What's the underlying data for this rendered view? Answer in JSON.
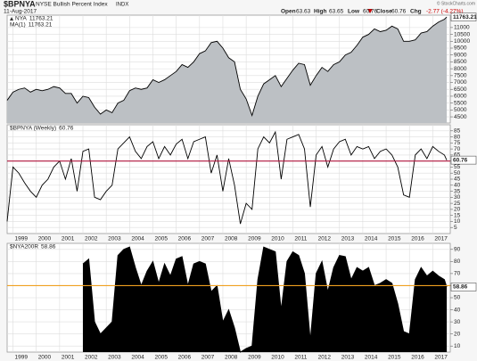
{
  "header": {
    "symbol": "$BPNYA",
    "name": "NYSE Bullish Percent Index",
    "exchange": "INDX",
    "date": "11-Aug-2017",
    "quote": [
      {
        "label": "Open",
        "value": "63.63"
      },
      {
        "label": "High",
        "value": "63.65"
      },
      {
        "label": "Low",
        "value": "60.76"
      },
      {
        "label": "Close",
        "value": "60.76"
      },
      {
        "label": "Chg",
        "value": "-2.77 (-4.27%)"
      }
    ],
    "credit": "© StockCharts.com"
  },
  "chart_data": [
    {
      "type": "area",
      "legend": [
        "NYA",
        "MA(1)"
      ],
      "grid": true,
      "xlim": [
        1998.75,
        2017.75
      ],
      "xticks": [
        1999,
        2000,
        2001,
        2002,
        2003,
        2004,
        2005,
        2006,
        2007,
        2008,
        2009,
        2010,
        2011,
        2012,
        2013,
        2014,
        2015,
        2016,
        2017
      ],
      "xaxis_labels": false,
      "ylim": [
        4050,
        11900
      ],
      "yticks": [
        4500,
        5000,
        5500,
        6000,
        6500,
        7000,
        7500,
        8000,
        8500,
        9000,
        9500,
        10000,
        10500,
        11000
      ],
      "series": [
        {
          "name": "NYA",
          "color": "#000000",
          "fill": "#bcc0c4",
          "x": [
            1998.75,
            1999,
            1999.25,
            1999.5,
            1999.75,
            2000,
            2000.25,
            2000.5,
            2000.75,
            2001,
            2001.25,
            2001.5,
            2001.75,
            2002,
            2002.25,
            2002.5,
            2002.75,
            2003,
            2003.25,
            2003.5,
            2003.75,
            2004,
            2004.25,
            2004.5,
            2004.75,
            2005,
            2005.25,
            2005.5,
            2005.75,
            2006,
            2006.25,
            2006.5,
            2006.75,
            2007,
            2007.25,
            2007.5,
            2007.75,
            2008,
            2008.25,
            2008.5,
            2008.75,
            2009,
            2009.25,
            2009.5,
            2009.75,
            2010,
            2010.25,
            2010.5,
            2010.75,
            2011,
            2011.25,
            2011.5,
            2011.75,
            2012,
            2012.25,
            2012.5,
            2012.75,
            2013,
            2013.25,
            2013.5,
            2013.75,
            2014,
            2014.25,
            2014.5,
            2014.75,
            2015,
            2015.25,
            2015.5,
            2015.75,
            2016,
            2016.25,
            2016.5,
            2016.75,
            2017,
            2017.25,
            2017.5,
            2017.6
          ],
          "values": [
            5700,
            6300,
            6500,
            6600,
            6300,
            6500,
            6400,
            6500,
            6700,
            6600,
            6200,
            6200,
            5500,
            6000,
            5900,
            5200,
            4700,
            5000,
            4800,
            5500,
            5700,
            6400,
            6600,
            6500,
            6600,
            7200,
            7000,
            7200,
            7500,
            7800,
            8300,
            8100,
            8500,
            9100,
            9300,
            9900,
            10000,
            9500,
            8800,
            8500,
            6500,
            5800,
            4600,
            6000,
            6900,
            7200,
            7500,
            6700,
            7300,
            7900,
            8400,
            8300,
            6800,
            7500,
            8100,
            7800,
            8300,
            8500,
            9000,
            9200,
            9700,
            10300,
            10500,
            10900,
            10700,
            10800,
            11100,
            10900,
            10000,
            10000,
            10100,
            10600,
            10700,
            11100,
            11400,
            11600,
            11763.21
          ]
        }
      ]
    },
    {
      "type": "line",
      "grid": true,
      "reference_line": {
        "value": 60,
        "color": "#b0143c"
      },
      "xlim": [
        1998.75,
        2017.75
      ],
      "xticks": [
        1999,
        2000,
        2001,
        2002,
        2003,
        2004,
        2005,
        2006,
        2007,
        2008,
        2009,
        2010,
        2011,
        2012,
        2013,
        2014,
        2015,
        2016,
        2017
      ],
      "xaxis_labels": true,
      "ylim": [
        0,
        90
      ],
      "yticks": [
        5,
        10,
        15,
        20,
        25,
        30,
        35,
        40,
        45,
        50,
        55,
        60,
        65,
        70,
        75,
        80,
        85
      ],
      "series": [
        {
          "name": "$BPNYA (Weekly)",
          "color": "#000000",
          "x": [
            1998.75,
            1999,
            1999.25,
            1999.5,
            1999.75,
            2000,
            2000.25,
            2000.5,
            2000.75,
            2001,
            2001.25,
            2001.5,
            2001.75,
            2002,
            2002.25,
            2002.5,
            2002.75,
            2003,
            2003.25,
            2003.5,
            2003.75,
            2004,
            2004.25,
            2004.5,
            2004.75,
            2005,
            2005.25,
            2005.5,
            2005.75,
            2006,
            2006.25,
            2006.5,
            2006.75,
            2007,
            2007.25,
            2007.5,
            2007.75,
            2008,
            2008.25,
            2008.5,
            2008.75,
            2009,
            2009.25,
            2009.5,
            2009.75,
            2010,
            2010.25,
            2010.5,
            2010.75,
            2011,
            2011.25,
            2011.5,
            2011.75,
            2012,
            2012.25,
            2012.5,
            2012.75,
            2013,
            2013.25,
            2013.5,
            2013.75,
            2014,
            2014.25,
            2014.5,
            2014.75,
            2015,
            2015.25,
            2015.5,
            2015.75,
            2016,
            2016.25,
            2016.5,
            2016.75,
            2017,
            2017.25,
            2017.5,
            2017.6
          ],
          "values": [
            10,
            55,
            50,
            42,
            35,
            30,
            40,
            45,
            55,
            60,
            45,
            62,
            35,
            68,
            70,
            30,
            28,
            35,
            40,
            70,
            75,
            80,
            68,
            62,
            72,
            76,
            62,
            72,
            65,
            74,
            78,
            62,
            76,
            78,
            80,
            50,
            65,
            35,
            62,
            40,
            8,
            25,
            20,
            70,
            80,
            75,
            84,
            45,
            78,
            80,
            82,
            70,
            22,
            65,
            72,
            55,
            70,
            76,
            78,
            65,
            72,
            70,
            72,
            62,
            68,
            70,
            65,
            55,
            32,
            30,
            65,
            70,
            62,
            72,
            68,
            65,
            60.76
          ]
        }
      ]
    },
    {
      "type": "area",
      "grid": true,
      "reference_line": {
        "value": 60,
        "color": "#f0a020"
      },
      "xlim": [
        1998.75,
        2017.75
      ],
      "xticks": [
        1999,
        2000,
        2001,
        2002,
        2003,
        2004,
        2005,
        2006,
        2007,
        2008,
        2009,
        2010,
        2011,
        2012,
        2013,
        2014,
        2015,
        2016,
        2017
      ],
      "xaxis_labels": true,
      "ylim": [
        5,
        95
      ],
      "yticks": [
        10,
        20,
        30,
        40,
        50,
        60,
        70,
        80,
        90
      ],
      "series": [
        {
          "name": "$NYA200R",
          "color": "#000000",
          "fill": "#000000",
          "x": [
            1998.75,
            1999,
            1999.25,
            1999.5,
            1999.75,
            2000,
            2000.25,
            2000.5,
            2000.75,
            2001,
            2001.25,
            2001.5,
            2001.75,
            2002,
            2002.25,
            2002.5,
            2002.75,
            2003,
            2003.25,
            2003.5,
            2003.75,
            2004,
            2004.25,
            2004.5,
            2004.75,
            2005,
            2005.25,
            2005.5,
            2005.75,
            2006,
            2006.25,
            2006.5,
            2006.75,
            2007,
            2007.25,
            2007.5,
            2007.75,
            2008,
            2008.25,
            2008.5,
            2008.75,
            2009,
            2009.25,
            2009.5,
            2009.75,
            2010,
            2010.25,
            2010.5,
            2010.75,
            2011,
            2011.25,
            2011.5,
            2011.75,
            2012,
            2012.25,
            2012.5,
            2012.75,
            2013,
            2013.25,
            2013.5,
            2013.75,
            2014,
            2014.25,
            2014.5,
            2014.75,
            2015,
            2015.25,
            2015.5,
            2015.75,
            2016,
            2016.25,
            2016.5,
            2016.75,
            2017,
            2017.25,
            2017.5,
            2017.6
          ],
          "values": [
            null,
            null,
            null,
            null,
            null,
            null,
            null,
            null,
            null,
            null,
            null,
            null,
            null,
            78,
            82,
            30,
            20,
            25,
            30,
            85,
            90,
            92,
            75,
            60,
            72,
            80,
            62,
            78,
            68,
            82,
            84,
            60,
            78,
            80,
            78,
            55,
            60,
            30,
            40,
            25,
            5,
            8,
            10,
            65,
            92,
            90,
            88,
            40,
            80,
            88,
            85,
            70,
            15,
            70,
            80,
            55,
            75,
            85,
            84,
            65,
            75,
            72,
            75,
            60,
            62,
            65,
            62,
            45,
            22,
            20,
            65,
            75,
            68,
            72,
            68,
            65,
            58.86
          ]
        }
      ]
    }
  ]
}
